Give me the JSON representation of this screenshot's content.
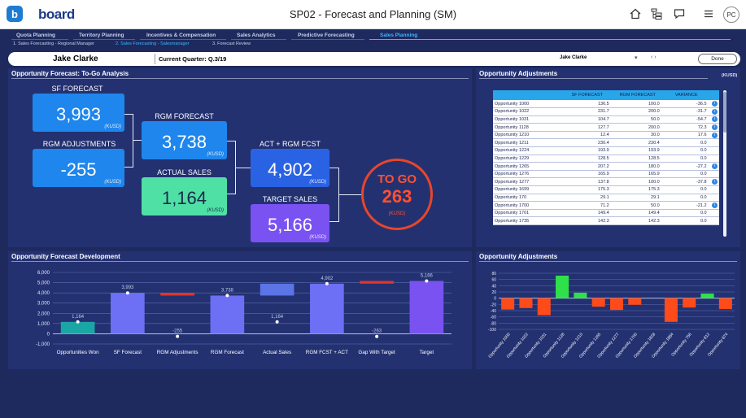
{
  "app": {
    "logo_letter": "b",
    "logo_text": "board",
    "title": "SP02 - Forecast and Planning (SM)",
    "icons": [
      "home-icon",
      "tree-icon",
      "chat-icon",
      "menu-icon"
    ],
    "avatar": "PC"
  },
  "nav": {
    "tabs": [
      {
        "label": "Quota Planning"
      },
      {
        "label": "Territory Planning"
      },
      {
        "label": "Incentives & Compensation"
      },
      {
        "label": "Sales Analytics"
      },
      {
        "label": "Predictive Forecasting"
      },
      {
        "label": "Sales Planning"
      }
    ],
    "subtabs": [
      {
        "label": "1. Sales Forecasting - Regional Manager"
      },
      {
        "label": "2. Sales Forecasting - Salesmanager"
      },
      {
        "label": "3. Forecast Review"
      }
    ],
    "active_tab_color": "#3db5ff"
  },
  "context": {
    "name": "Jake Clarke",
    "quarter": "Current Quarter: Q.3/19",
    "selector": "Jake Clarke",
    "done": "Done"
  },
  "togo": {
    "title": "Opportunity Forecast: To-Go Analysis",
    "sf": {
      "label": "SF FORECAST",
      "value": "3,993",
      "unit": "(KUSD)"
    },
    "rgm_adj": {
      "label": "RGM ADJUSTMENTS",
      "value": "-255",
      "unit": "(KUSD)"
    },
    "rgm_fc": {
      "label": "RGM FORECAST",
      "value": "3,738",
      "unit": "(KUSD)"
    },
    "actual": {
      "label": "ACTUAL SALES",
      "value": "1,164",
      "unit": "(KUSD)"
    },
    "act_rgm": {
      "label": "ACT + RGM FCST",
      "value": "4,902",
      "unit": "(KUSD)"
    },
    "target": {
      "label": "TARGET SALES",
      "value": "5,166",
      "unit": "(KUSD)"
    },
    "to_go": {
      "label": "TO GO",
      "value": "263",
      "unit": "(KUSD)"
    },
    "colors": {
      "sf": "#1e86ec",
      "actual": "#4fe0a5",
      "combined": "#2a62e4",
      "target": "#7a52f2",
      "to_go": "#e8462a"
    }
  },
  "adjustments_table": {
    "title": "Opportunity Adjustments",
    "unit": "(KUSD)",
    "columns": [
      "",
      "SF FORECAST",
      "RGM FORECAST",
      "VARIANCE"
    ],
    "rows": [
      {
        "name": "Opportunity 1000",
        "sf": "136.5",
        "rgm": "100.0",
        "var": "-36.5",
        "info": true
      },
      {
        "name": "Opportunity 1022",
        "sf": "231.7",
        "rgm": "200.0",
        "var": "-31.7",
        "info": true
      },
      {
        "name": "Opportunity 1031",
        "sf": "104.7",
        "rgm": "50.0",
        "var": "-54.7",
        "info": true
      },
      {
        "name": "Opportunity 1128",
        "sf": "127.7",
        "rgm": "200.0",
        "var": "72.3",
        "info": true
      },
      {
        "name": "Opportunity 1210",
        "sf": "12.4",
        "rgm": "30.0",
        "var": "17.6",
        "info": true
      },
      {
        "name": "Opportunity 1211",
        "sf": "230.4",
        "rgm": "230.4",
        "var": "0.0",
        "info": false
      },
      {
        "name": "Opportunity 1224",
        "sf": "193.9",
        "rgm": "193.9",
        "var": "0.0",
        "info": false
      },
      {
        "name": "Opportunity 1229",
        "sf": "128.5",
        "rgm": "128.5",
        "var": "0.0",
        "info": false
      },
      {
        "name": "Opportunity 1265",
        "sf": "207.2",
        "rgm": "180.0",
        "var": "-27.2",
        "info": true
      },
      {
        "name": "Opportunity 1276",
        "sf": "165.9",
        "rgm": "165.9",
        "var": "0.0",
        "info": false
      },
      {
        "name": "Opportunity 1277",
        "sf": "137.8",
        "rgm": "100.0",
        "var": "-37.8",
        "info": true
      },
      {
        "name": "Opportunity 1699",
        "sf": "175.3",
        "rgm": "175.3",
        "var": "0.0",
        "info": false
      },
      {
        "name": "Opportunity 170",
        "sf": "29.1",
        "rgm": "29.1",
        "var": "0.0",
        "info": false
      },
      {
        "name": "Opportunity 1700",
        "sf": "71.2",
        "rgm": "50.0",
        "var": "-21.2",
        "info": true
      },
      {
        "name": "Opportunity 1701",
        "sf": "149.4",
        "rgm": "149.4",
        "var": "0.0",
        "info": false
      },
      {
        "name": "Opportunity 1735",
        "sf": "142.3",
        "rgm": "142.3",
        "var": "0.0",
        "info": false
      }
    ]
  },
  "chart_data": [
    {
      "type": "bar",
      "title": "Opportunity Forecast Development",
      "categories": [
        "Opportunities Won",
        "SF Forecast",
        "RGM Adjustments",
        "RGM Forecast",
        "Actual Sales",
        "RGM FCST + ACT",
        "Gap With Target",
        "Target"
      ],
      "base": [
        0,
        0,
        3738,
        0,
        3738,
        0,
        4902,
        0
      ],
      "top": [
        1164,
        3993,
        3993,
        3738,
        4902,
        4902,
        5166,
        5166
      ],
      "labels": [
        "1,164",
        "3,993",
        "-255",
        "3,738",
        "1,164",
        "4,902",
        "-263",
        "5,166"
      ],
      "marker": [
        1164,
        3993,
        -255,
        3738,
        1164,
        4902,
        -263,
        5166
      ],
      "colors": [
        "#1ba6a6",
        "#6d6ff4",
        "#e2342a",
        "#6d6ff4",
        "#5b74e6",
        "#6d6ff4",
        "#e2342a",
        "#7a52f2"
      ],
      "yticks": [
        "6,000",
        "5,000",
        "4,000",
        "3,000",
        "2,000",
        "1,000",
        "0",
        "-1,000"
      ],
      "ylim": [
        -1000,
        6000
      ],
      "grid": true
    },
    {
      "type": "bar",
      "title": "Opportunity Adjustments",
      "categories": [
        "Opportunity 1000",
        "Opportunity 1022",
        "Opportunity 1031",
        "Opportunity 1128",
        "Opportunity 1210",
        "Opportunity 1265",
        "Opportunity 1277",
        "Opportunity 1700",
        "Opportunity 1828",
        "Opportunity 1884",
        "Opportunity 756",
        "Opportunity 812",
        "Opportunity 874"
      ],
      "values": [
        -36.5,
        -31.7,
        -54.7,
        72.3,
        17.6,
        -27.2,
        -37.8,
        -21.2,
        0,
        -76,
        -30,
        15,
        -35
      ],
      "yticks": [
        "80",
        "60",
        "40",
        "20",
        "0",
        "-20",
        "-40",
        "-60",
        "-80",
        "-100"
      ],
      "ylim": [
        -100,
        80
      ],
      "positive_color": "#2fe04a",
      "negative_color": "#ff4a1a",
      "grid": true
    }
  ]
}
